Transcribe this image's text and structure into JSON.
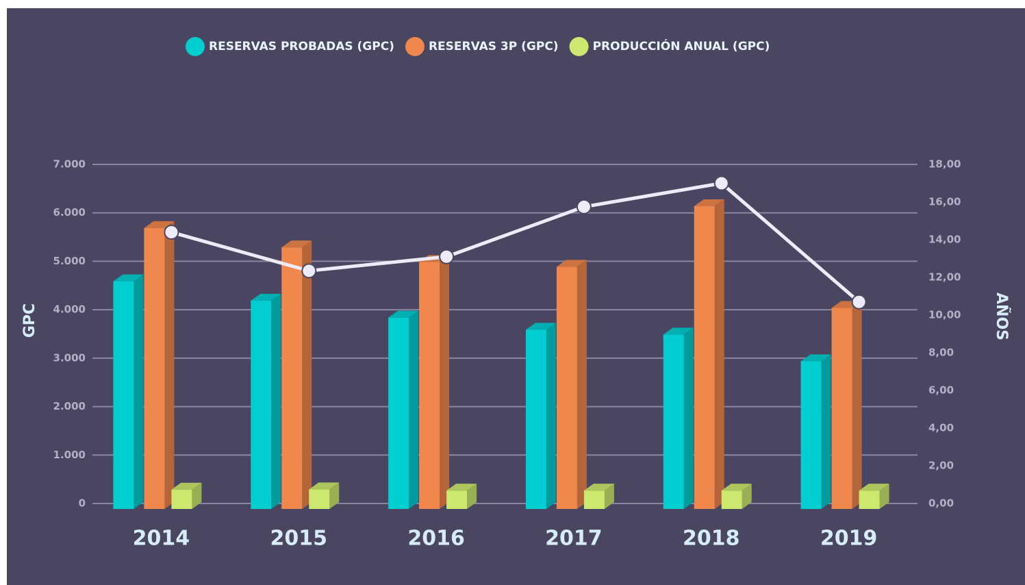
{
  "chart_data": {
    "type": "bar",
    "categories": [
      "2014",
      "2015",
      "2016",
      "2017",
      "2018",
      "2019"
    ],
    "series": [
      {
        "name": "RESERVAS PROBADAS (GPC)",
        "color": "#00ced1",
        "values": [
          4700,
          4300,
          3950,
          3700,
          3600,
          3050
        ]
      },
      {
        "name": "RESERVAS 3P (GPC)",
        "color": "#f0874d",
        "values": [
          5800,
          5400,
          5100,
          5000,
          6250,
          4150
        ]
      },
      {
        "name": "PRODUCCIÓN ANUAL (GPC)",
        "color": "#cde86e",
        "values": [
          400,
          405,
          380,
          380,
          380,
          380
        ]
      },
      {
        "type": "line",
        "axis": "y2",
        "color": "#ecebf7",
        "values": [
          14.4,
          12.35,
          13.1,
          15.75,
          17.0,
          10.7
        ]
      }
    ],
    "ylabel": "GPC",
    "y2label": "AÑOS",
    "ylim": [
      0,
      7000
    ],
    "yticks": [
      0,
      {
        "value": 1000,
        "label": "1.000"
      },
      {
        "value": 2000,
        "label": "2.000"
      },
      {
        "value": 3000,
        "label": "3.000"
      },
      {
        "value": 4000,
        "label": "4.000"
      },
      {
        "value": 5000,
        "label": "5.000"
      },
      {
        "value": 6000,
        "label": "6.000"
      },
      {
        "value": 7000,
        "label": "7.000"
      }
    ],
    "y2lim": [
      0,
      18
    ],
    "y2ticks": [
      {
        "value": 0,
        "label": "0,00"
      },
      {
        "value": 2,
        "label": "2,00"
      },
      {
        "value": 4,
        "label": "4,00"
      },
      {
        "value": 6,
        "label": "6,00"
      },
      {
        "value": 8,
        "label": "8,00"
      },
      {
        "value": 10,
        "label": "10,00"
      },
      {
        "value": 12,
        "label": "12,00"
      },
      {
        "value": 14,
        "label": "14,00"
      },
      {
        "value": 16,
        "label": "16,00"
      },
      {
        "value": 18,
        "label": "18,00"
      }
    ],
    "grid": true,
    "legend": "top"
  }
}
